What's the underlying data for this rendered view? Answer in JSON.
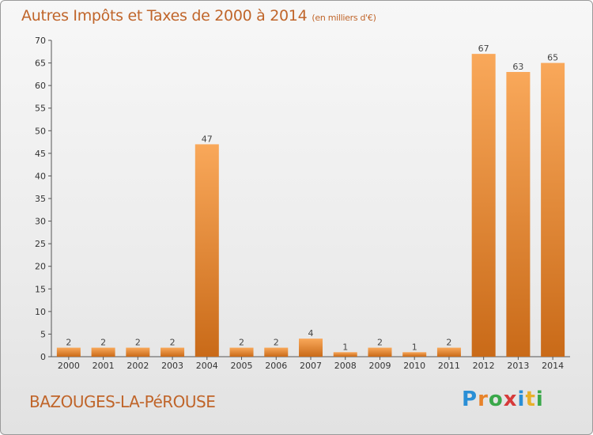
{
  "header": {
    "title": "Autres Impôts et Taxes de 2000 à 2014",
    "unit": "(en milliers d'€)"
  },
  "footer": {
    "commune": "BAZOUGES-LA-PéROUSE",
    "logo_text": "Proxiti"
  },
  "colors": {
    "bar_light": "#f9a85a",
    "bar_dark": "#c96a18",
    "title": "#c0652a"
  },
  "chart_data": {
    "type": "bar",
    "title": "Autres Impôts et Taxes de 2000 à 2014",
    "categories": [
      "2000",
      "2001",
      "2002",
      "2003",
      "2004",
      "2005",
      "2006",
      "2007",
      "2008",
      "2009",
      "2010",
      "2011",
      "2012",
      "2013",
      "2014"
    ],
    "values": [
      2,
      2,
      2,
      2,
      47,
      2,
      2,
      4,
      1,
      2,
      1,
      2,
      67,
      63,
      65
    ],
    "ylim": [
      0,
      70
    ],
    "yticks": [
      0,
      5,
      10,
      15,
      20,
      25,
      30,
      35,
      40,
      45,
      50,
      55,
      60,
      65,
      70
    ],
    "grid": false,
    "data_labels": true
  }
}
